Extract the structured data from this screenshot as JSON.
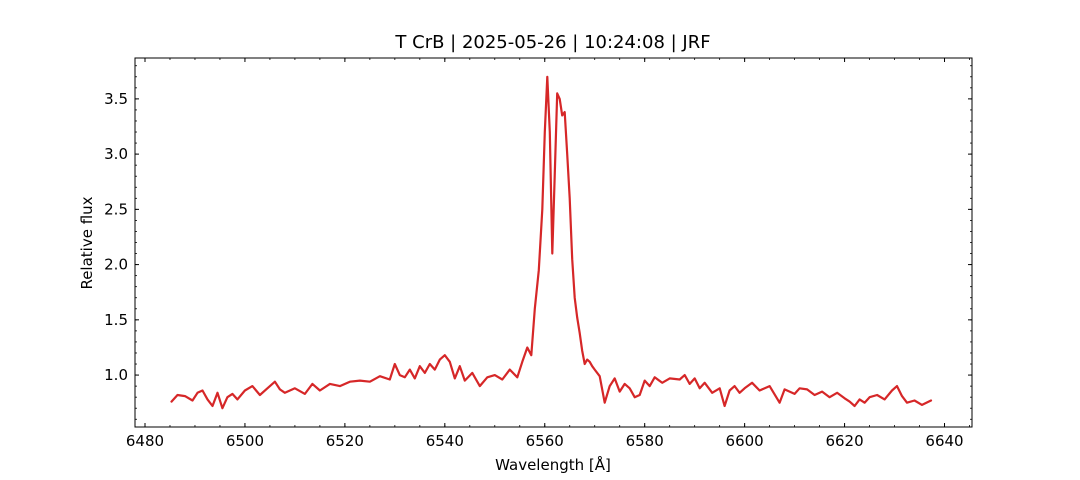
{
  "chart_data": {
    "type": "line",
    "title": "T CrB | 2025-05-26 | 10:24:08 | JRF",
    "xlabel": "Wavelength [Å]",
    "ylabel": "Relative flux",
    "xlim": [
      6478,
      6645.5
    ],
    "ylim": [
      0.53,
      3.87
    ],
    "xticks": [
      6480,
      6500,
      6520,
      6540,
      6560,
      6580,
      6600,
      6620,
      6640
    ],
    "xtick_labels": [
      "6480",
      "6500",
      "6520",
      "6540",
      "6560",
      "6580",
      "6600",
      "6620",
      "6640"
    ],
    "yticks": [
      1.0,
      1.5,
      2.0,
      2.5,
      3.0,
      3.5
    ],
    "ytick_labels": [
      "1.0",
      "1.5",
      "2.0",
      "2.5",
      "3.0",
      "3.5"
    ],
    "x_minor_step": 5,
    "y_minor_step": 0.1,
    "ticks_direction": "in",
    "grid": false,
    "legend": "none",
    "series": [
      {
        "color": "#d62728",
        "x": [
          6485.3,
          6486.5,
          6488.0,
          6489.5,
          6490.5,
          6491.5,
          6492.5,
          6493.5,
          6494.5,
          6495.5,
          6496.5,
          6497.5,
          6498.5,
          6500.0,
          6501.5,
          6503.0,
          6504.5,
          6506.0,
          6507.0,
          6508.0,
          6510.0,
          6512.0,
          6513.5,
          6515.0,
          6517.0,
          6519.0,
          6521.0,
          6523.0,
          6525.0,
          6527.0,
          6529.0,
          6530.0,
          6531.0,
          6532.0,
          6533.0,
          6534.0,
          6535.0,
          6536.0,
          6537.0,
          6538.0,
          6539.0,
          6540.0,
          6541.0,
          6542.0,
          6543.0,
          6544.0,
          6545.5,
          6547.0,
          6548.5,
          6550.0,
          6551.5,
          6553.0,
          6554.5,
          6555.5,
          6556.5,
          6557.3,
          6558.0,
          6558.8,
          6559.5,
          6560.0,
          6560.5,
          6561.0,
          6561.5,
          6562.0,
          6562.5,
          6563.0,
          6563.5,
          6564.0,
          6564.5,
          6565.0,
          6565.5,
          6566.0,
          6566.5,
          6567.0,
          6567.5,
          6568.0,
          6568.5,
          6569.0,
          6569.5,
          6570.0,
          6571.0,
          6572.0,
          6573.0,
          6574.0,
          6575.0,
          6576.0,
          6577.0,
          6578.0,
          6579.0,
          6580.0,
          6581.0,
          6582.0,
          6583.5,
          6585.0,
          6587.0,
          6588.0,
          6589.0,
          6590.0,
          6591.0,
          6592.0,
          6593.5,
          6595.0,
          6596.0,
          6597.0,
          6598.0,
          6599.0,
          6600.0,
          6601.5,
          6603.0,
          6605.0,
          6607.0,
          6608.0,
          6609.0,
          6610.0,
          6611.0,
          6612.5,
          6614.0,
          6615.5,
          6617.0,
          6618.5,
          6620.0,
          6621.0,
          6622.0,
          6623.0,
          6624.0,
          6625.0,
          6626.5,
          6628.0,
          6629.5,
          6630.5,
          6631.5,
          6632.5,
          6634.0,
          6635.5,
          6637.3
        ],
        "y": [
          0.76,
          0.82,
          0.81,
          0.77,
          0.84,
          0.86,
          0.78,
          0.72,
          0.84,
          0.7,
          0.8,
          0.83,
          0.78,
          0.86,
          0.9,
          0.82,
          0.88,
          0.94,
          0.87,
          0.84,
          0.88,
          0.83,
          0.92,
          0.86,
          0.92,
          0.9,
          0.94,
          0.95,
          0.94,
          0.99,
          0.96,
          1.1,
          1.0,
          0.98,
          1.05,
          0.97,
          1.08,
          1.02,
          1.1,
          1.05,
          1.14,
          1.18,
          1.12,
          0.97,
          1.08,
          0.95,
          1.02,
          0.9,
          0.98,
          1.0,
          0.96,
          1.05,
          0.98,
          1.12,
          1.25,
          1.18,
          1.6,
          1.95,
          2.5,
          3.2,
          3.7,
          3.2,
          2.1,
          2.8,
          3.55,
          3.5,
          3.35,
          3.38,
          3.0,
          2.6,
          2.05,
          1.7,
          1.52,
          1.38,
          1.22,
          1.1,
          1.14,
          1.12,
          1.08,
          1.05,
          0.99,
          0.75,
          0.9,
          0.97,
          0.85,
          0.92,
          0.88,
          0.8,
          0.82,
          0.95,
          0.9,
          0.98,
          0.93,
          0.97,
          0.96,
          1.0,
          0.92,
          0.97,
          0.88,
          0.93,
          0.84,
          0.88,
          0.72,
          0.86,
          0.9,
          0.84,
          0.88,
          0.93,
          0.86,
          0.9,
          0.75,
          0.87,
          0.85,
          0.83,
          0.88,
          0.87,
          0.82,
          0.85,
          0.8,
          0.84,
          0.79,
          0.76,
          0.72,
          0.78,
          0.75,
          0.8,
          0.82,
          0.78,
          0.86,
          0.9,
          0.81,
          0.75,
          0.77,
          0.73,
          0.77
        ]
      }
    ]
  }
}
